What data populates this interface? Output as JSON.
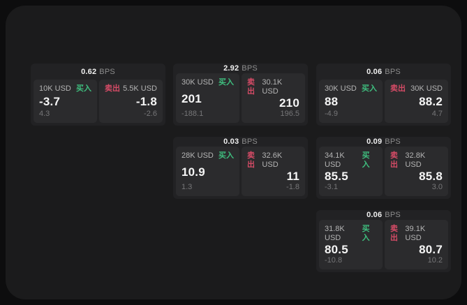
{
  "labels": {
    "bps_unit": "BPS",
    "buy": "买入",
    "sell": "卖出"
  },
  "colors": {
    "page_bg": "#0d0d0e",
    "panel_bg": "#1b1b1c",
    "card_bg": "#222224",
    "tile_bg": "#2b2b2d",
    "buy_green": "#3fbf7f",
    "sell_red": "#d54b66"
  },
  "cards": [
    {
      "bps": "0.62",
      "buy": {
        "notional": "10K USD",
        "price": "-3.7",
        "delta": "4.3"
      },
      "sell": {
        "notional": "5.5K USD",
        "price": "-1.8",
        "delta": "-2.6"
      }
    },
    {
      "bps": "2.92",
      "buy": {
        "notional": "30K USD",
        "price": "201",
        "delta": "-188.1"
      },
      "sell": {
        "notional": "30.1K USD",
        "price": "210",
        "delta": "196.5"
      }
    },
    {
      "bps": "0.06",
      "buy": {
        "notional": "30K USD",
        "price": "88",
        "delta": "-4.9"
      },
      "sell": {
        "notional": "30K USD",
        "price": "88.2",
        "delta": "4.7"
      }
    },
    {
      "bps": "0.03",
      "buy": {
        "notional": "28K USD",
        "price": "10.9",
        "delta": "1.3"
      },
      "sell": {
        "notional": "32.6K USD",
        "price": "11",
        "delta": "-1.8"
      }
    },
    {
      "bps": "0.09",
      "buy": {
        "notional": "34.1K USD",
        "price": "85.5",
        "delta": "-3.1"
      },
      "sell": {
        "notional": "32.8K USD",
        "price": "85.8",
        "delta": "3.0"
      }
    },
    {
      "bps": "0.06",
      "buy": {
        "notional": "31.8K USD",
        "price": "80.5",
        "delta": "-10.8"
      },
      "sell": {
        "notional": "39.1K USD",
        "price": "80.7",
        "delta": "10.2"
      }
    }
  ]
}
